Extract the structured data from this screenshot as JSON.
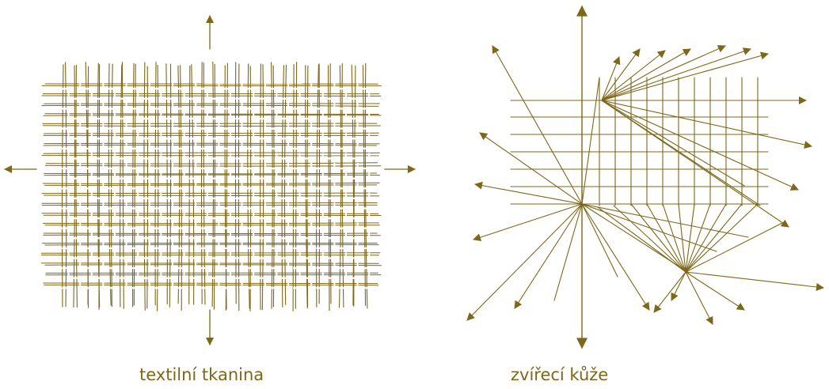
{
  "colors": {
    "ink": "#7d6718",
    "background": "#ffffff"
  },
  "panels": [
    {
      "id": "fabric",
      "caption": "textilní tkanina"
    },
    {
      "id": "hide",
      "caption": "zvířecí kůže"
    }
  ]
}
